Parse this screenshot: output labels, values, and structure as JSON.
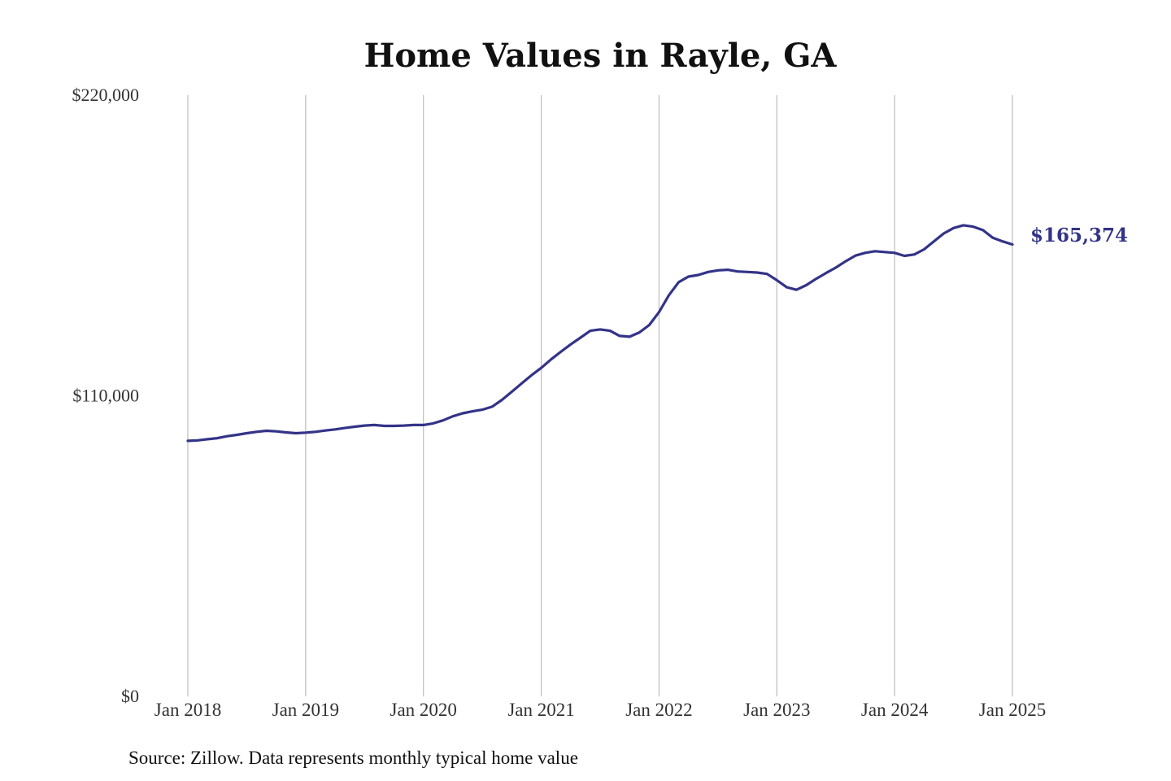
{
  "chart_data": {
    "type": "line",
    "title": "Home Values in Rayle, GA",
    "xlabel": "",
    "ylabel": "",
    "ylim": [
      0,
      220000
    ],
    "yticks": [
      {
        "value": 0,
        "label": "$0"
      },
      {
        "value": 110000,
        "label": "$110,000"
      },
      {
        "value": 220000,
        "label": "$220,000"
      }
    ],
    "xlim": [
      "2018-01",
      "2025-01"
    ],
    "xticks": [
      {
        "value": "2018-01",
        "label": "Jan 2018"
      },
      {
        "value": "2019-01",
        "label": "Jan 2019"
      },
      {
        "value": "2020-01",
        "label": "Jan 2020"
      },
      {
        "value": "2021-01",
        "label": "Jan 2021"
      },
      {
        "value": "2022-01",
        "label": "Jan 2022"
      },
      {
        "value": "2023-01",
        "label": "Jan 2023"
      },
      {
        "value": "2024-01",
        "label": "Jan 2024"
      },
      {
        "value": "2025-01",
        "label": "Jan 2025"
      }
    ],
    "grid": "vertical",
    "line_color": "#333388",
    "end_label": "$165,374",
    "series": [
      {
        "x": [
          "2018-01",
          "2018-02",
          "2018-03",
          "2018-04",
          "2018-05",
          "2018-06",
          "2018-07",
          "2018-08",
          "2018-09",
          "2018-10",
          "2018-11",
          "2018-12",
          "2019-01",
          "2019-02",
          "2019-03",
          "2019-04",
          "2019-05",
          "2019-06",
          "2019-07",
          "2019-08",
          "2019-09",
          "2019-10",
          "2019-11",
          "2019-12",
          "2020-01",
          "2020-02",
          "2020-03",
          "2020-04",
          "2020-05",
          "2020-06",
          "2020-07",
          "2020-08",
          "2020-09",
          "2020-10",
          "2020-11",
          "2020-12",
          "2021-01",
          "2021-02",
          "2021-03",
          "2021-04",
          "2021-05",
          "2021-06",
          "2021-07",
          "2021-08",
          "2021-09",
          "2021-10",
          "2021-11",
          "2021-12",
          "2022-01",
          "2022-02",
          "2022-03",
          "2022-04",
          "2022-05",
          "2022-06",
          "2022-07",
          "2022-08",
          "2022-09",
          "2022-10",
          "2022-11",
          "2022-12",
          "2023-01",
          "2023-02",
          "2023-03",
          "2023-04",
          "2023-05",
          "2023-06",
          "2023-07",
          "2023-08",
          "2023-09",
          "2023-10",
          "2023-11",
          "2023-12",
          "2024-01",
          "2024-02",
          "2024-03",
          "2024-04",
          "2024-05",
          "2024-06",
          "2024-07",
          "2024-08",
          "2024-09",
          "2024-10",
          "2024-11",
          "2024-12",
          "2025-01"
        ],
        "values": [
          93500,
          93700,
          94100,
          94500,
          95200,
          95700,
          96300,
          96800,
          97200,
          97000,
          96600,
          96300,
          96500,
          96800,
          97300,
          97700,
          98200,
          98700,
          99100,
          99300,
          99000,
          99000,
          99100,
          99300,
          99300,
          99900,
          101000,
          102500,
          103600,
          104300,
          104900,
          106000,
          108500,
          111500,
          114500,
          117500,
          120200,
          123300,
          126100,
          128800,
          131300,
          133800,
          134300,
          133800,
          131900,
          131600,
          133200,
          135900,
          140600,
          146800,
          151600,
          153600,
          154200,
          155300,
          155900,
          156100,
          155500,
          155300,
          155100,
          154600,
          152300,
          149700,
          148800,
          150500,
          152800,
          154900,
          156900,
          159200,
          161300,
          162300,
          162900,
          162600,
          162300,
          161200,
          161700,
          163600,
          166500,
          169400,
          171400,
          172400,
          171900,
          170600,
          167800,
          166500,
          165374
        ]
      }
    ]
  },
  "source": "Source: Zillow. Data represents monthly typical home value"
}
